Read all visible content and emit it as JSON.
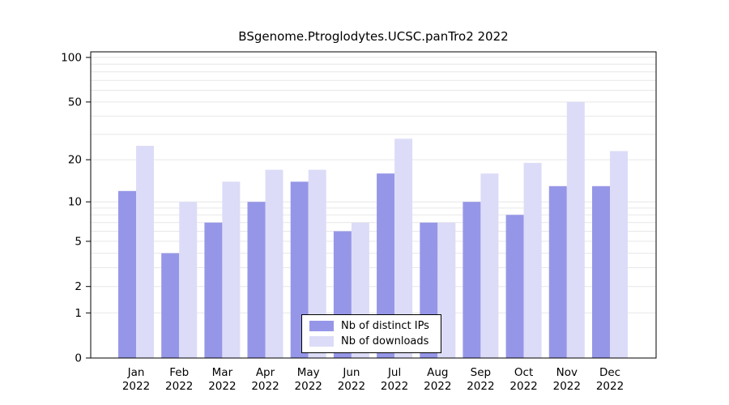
{
  "chart_data": {
    "type": "bar",
    "title": "BSgenome.Ptroglodytes.UCSC.panTro2 2022",
    "categories": [
      "Jan",
      "Feb",
      "Mar",
      "Apr",
      "May",
      "Jun",
      "Jul",
      "Aug",
      "Sep",
      "Oct",
      "Nov",
      "Dec"
    ],
    "year_label": "2022",
    "series": [
      {
        "key": "distinct-ips",
        "name": "Nb of distinct IPs",
        "color": "#9696e8",
        "values": [
          12,
          4,
          7,
          10,
          14,
          6,
          16,
          7,
          10,
          8,
          13,
          13
        ]
      },
      {
        "key": "downloads",
        "name": "Nb of downloads",
        "color": "#dcdcf8",
        "values": [
          25,
          10,
          14,
          17,
          17,
          7,
          28,
          7,
          16,
          19,
          50,
          23
        ]
      }
    ],
    "yticks": [
      0,
      1,
      2,
      5,
      10,
      20,
      50,
      100
    ],
    "grid_values": [
      1,
      2,
      3,
      4,
      5,
      6,
      7,
      8,
      9,
      10,
      20,
      30,
      40,
      50,
      60,
      70,
      80,
      90,
      100
    ],
    "grid_color": "#e7e7e7",
    "axis_color": "#000000",
    "background": "#ffffff",
    "scale": "log1p",
    "ylim": [
      0,
      100
    ],
    "grid": true,
    "legend_position": "bottom-center"
  }
}
